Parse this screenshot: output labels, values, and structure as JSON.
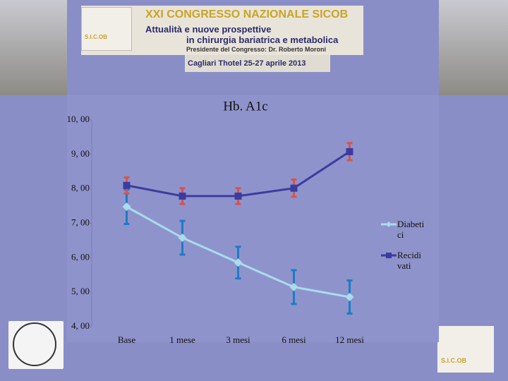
{
  "header": {
    "logo": "S.I.C.OB",
    "title": "XXI CONGRESSO NAZIONALE SICOB",
    "subtitle_1": "Attualità e nuove prospettive",
    "subtitle_2": "in chirurgia bariatrica e metabolica",
    "president": "Presidente del Congresso: Dr. Roberto Moroni",
    "location": "Cagliari Thotel 25-27 aprile 2013"
  },
  "chart_data": {
    "type": "line",
    "title": "Hb. A1c",
    "categories": [
      "Base",
      "1 mese",
      "3 mesi",
      "6 mesi",
      "12 mesi"
    ],
    "series": [
      {
        "name": "Diabetici",
        "color": "#a9dcec",
        "error_color": "#1a7dc6",
        "values": [
          7.48,
          6.58,
          5.86,
          5.15,
          4.86
        ],
        "errors": [
          0.5,
          0.49,
          0.46,
          0.49,
          0.48
        ]
      },
      {
        "name": "Recidivati",
        "color": "#3a3d9e",
        "error_color": "#d9534f",
        "values": [
          8.1,
          7.79,
          7.79,
          8.02,
          9.08
        ],
        "errors": [
          0.23,
          0.23,
          0.23,
          0.25,
          0.25
        ]
      }
    ],
    "ylim": [
      4,
      10
    ],
    "yticks": [
      {
        "value": 4,
        "label": "4, 00"
      },
      {
        "value": 5,
        "label": "5, 00"
      },
      {
        "value": 6,
        "label": "6, 00"
      },
      {
        "value": 7,
        "label": "7, 00"
      },
      {
        "value": 8,
        "label": "8, 00"
      },
      {
        "value": 9,
        "label": "9, 00"
      },
      {
        "value": 10,
        "label": "10, 00"
      }
    ],
    "grid": false,
    "legend": "right"
  }
}
